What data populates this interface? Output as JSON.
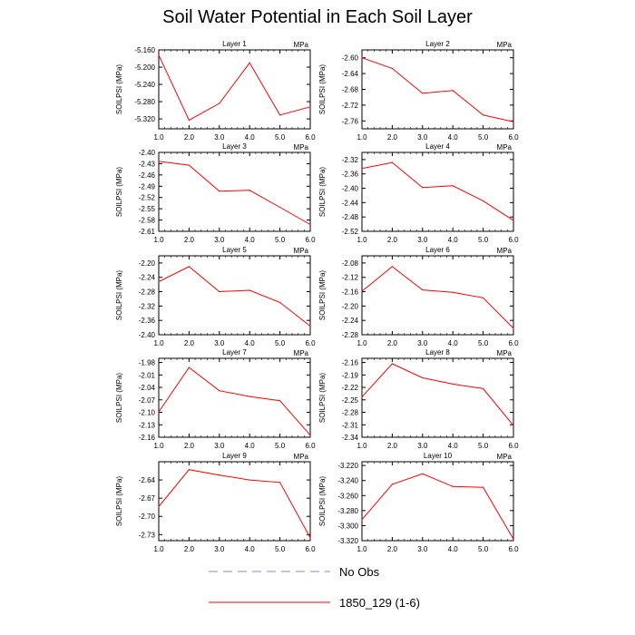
{
  "title": "Soil Water Potential in Each Soil Layer",
  "legend": {
    "items": [
      {
        "label": "No Obs",
        "color": "#8080ff",
        "style": "dashed"
      },
      {
        "label": "1850_129 (1-6)",
        "color": "#ff0000",
        "style": "solid"
      }
    ]
  },
  "chart_data": [
    {
      "type": "line",
      "title": "Layer 1",
      "units": "MPa",
      "ylabel": "SOILPSI  (MPa)",
      "x": [
        1,
        2,
        3,
        4,
        5,
        6
      ],
      "values": [
        -5.172,
        -5.323,
        -5.284,
        -5.19,
        -5.311,
        -5.292
      ],
      "xlim": [
        1,
        6
      ],
      "ylim": [
        -5.343,
        -5.16
      ],
      "yticks": [
        "-5.160",
        "-5.200",
        "-5.240",
        "-5.280",
        "-5.320"
      ],
      "xticks": [
        "1.0",
        "2.0",
        "3.0",
        "4.0",
        "5.0",
        "6.0"
      ],
      "color": "#ff0000"
    },
    {
      "type": "line",
      "title": "Layer 2",
      "units": "MPa",
      "ylabel": "SOILPSI  (MPa)",
      "x": [
        1,
        2,
        3,
        4,
        5,
        6
      ],
      "values": [
        -2.6,
        -2.627,
        -2.69,
        -2.683,
        -2.745,
        -2.762
      ],
      "xlim": [
        1,
        6
      ],
      "ylim": [
        -2.78,
        -2.58
      ],
      "yticks": [
        "-2.60",
        "-2.64",
        "-2.68",
        "-2.72",
        "-2.76"
      ],
      "xticks": [
        "1.0",
        "2.0",
        "3.0",
        "4.0",
        "5.0",
        "6.0"
      ],
      "color": "#ff0000"
    },
    {
      "type": "line",
      "title": "Layer 3",
      "units": "MPa",
      "ylabel": "SOILPSI  (MPa)",
      "x": [
        1,
        2,
        3,
        4,
        5,
        6
      ],
      "values": [
        -2.424,
        -2.434,
        -2.503,
        -2.501,
        -2.546,
        -2.592
      ],
      "xlim": [
        1,
        6
      ],
      "ylim": [
        -2.61,
        -2.4
      ],
      "yticks": [
        "-2.40",
        "-2.43",
        "-2.46",
        "-2.49",
        "-2.52",
        "-2.55",
        "-2.58",
        "-2.61"
      ],
      "xticks": [
        "1.0",
        "2.0",
        "3.0",
        "4.0",
        "5.0",
        "6.0"
      ],
      "color": "#ff0000"
    },
    {
      "type": "line",
      "title": "Layer 4",
      "units": "MPa",
      "ylabel": "SOILPSI  (MPa)",
      "x": [
        1,
        2,
        3,
        4,
        5,
        6
      ],
      "values": [
        -2.345,
        -2.328,
        -2.398,
        -2.393,
        -2.435,
        -2.49
      ],
      "xlim": [
        1,
        6
      ],
      "ylim": [
        -2.52,
        -2.3
      ],
      "yticks": [
        "-2.32",
        "-2.36",
        "-2.40",
        "-2.44",
        "-2.48",
        "-2.52"
      ],
      "xticks": [
        "1.0",
        "2.0",
        "3.0",
        "4.0",
        "5.0",
        "6.0"
      ],
      "color": "#ff0000"
    },
    {
      "type": "line",
      "title": "Layer 5",
      "units": "MPa",
      "ylabel": "SOILPSI  (MPa)",
      "x": [
        1,
        2,
        3,
        4,
        5,
        6
      ],
      "values": [
        -2.252,
        -2.21,
        -2.28,
        -2.276,
        -2.31,
        -2.376
      ],
      "xlim": [
        1,
        6
      ],
      "ylim": [
        -2.4,
        -2.18
      ],
      "yticks": [
        "-2.20",
        "-2.24",
        "-2.28",
        "-2.32",
        "-2.36",
        "-2.40"
      ],
      "xticks": [
        "1.0",
        "2.0",
        "3.0",
        "4.0",
        "5.0",
        "6.0"
      ],
      "color": "#ff0000"
    },
    {
      "type": "line",
      "title": "Layer 6",
      "units": "MPa",
      "ylabel": "SOILPSI  (MPa)",
      "x": [
        1,
        2,
        3,
        4,
        5,
        6
      ],
      "values": [
        -2.159,
        -2.09,
        -2.155,
        -2.162,
        -2.177,
        -2.262
      ],
      "xlim": [
        1,
        6
      ],
      "ylim": [
        -2.28,
        -2.06
      ],
      "yticks": [
        "-2.08",
        "-2.12",
        "-2.16",
        "-2.20",
        "-2.24",
        "-2.28"
      ],
      "xticks": [
        "1.0",
        "2.0",
        "3.0",
        "4.0",
        "5.0",
        "6.0"
      ],
      "color": "#ff0000"
    },
    {
      "type": "line",
      "title": "Layer 7",
      "units": "MPa",
      "ylabel": "SOILPSI  (MPa)",
      "x": [
        1,
        2,
        3,
        4,
        5,
        6
      ],
      "values": [
        -2.099,
        -1.992,
        -2.048,
        -2.062,
        -2.072,
        -2.155
      ],
      "xlim": [
        1,
        6
      ],
      "ylim": [
        -2.16,
        -1.97
      ],
      "yticks": [
        "-1.98",
        "-2.01",
        "-2.04",
        "-2.07",
        "-2.10",
        "-2.13",
        "-2.16"
      ],
      "xticks": [
        "1.0",
        "2.0",
        "3.0",
        "4.0",
        "5.0",
        "6.0"
      ],
      "color": "#ff0000"
    },
    {
      "type": "line",
      "title": "Layer 8",
      "units": "MPa",
      "ylabel": "SOILPSI  (MPa)",
      "x": [
        1,
        2,
        3,
        4,
        5,
        6
      ],
      "values": [
        -2.243,
        -2.163,
        -2.197,
        -2.212,
        -2.223,
        -2.312
      ],
      "xlim": [
        1,
        6
      ],
      "ylim": [
        -2.34,
        -2.15
      ],
      "yticks": [
        "-2.16",
        "-2.19",
        "-2.22",
        "-2.25",
        "-2.28",
        "-2.31",
        "-2.34"
      ],
      "xticks": [
        "1.0",
        "2.0",
        "3.0",
        "4.0",
        "5.0",
        "6.0"
      ],
      "color": "#ff0000"
    },
    {
      "type": "line",
      "title": "Layer 9",
      "units": "MPa",
      "ylabel": "SOILPSI  (MPa)",
      "x": [
        1,
        2,
        3,
        4,
        5,
        6
      ],
      "values": [
        -2.684,
        -2.623,
        -2.632,
        -2.64,
        -2.644,
        -2.735
      ],
      "xlim": [
        1,
        6
      ],
      "ylim": [
        -2.74,
        -2.61
      ],
      "yticks": [
        "-2.64",
        "-2.67",
        "-2.70",
        "-2.73"
      ],
      "xticks": [
        "1.0",
        "2.0",
        "3.0",
        "4.0",
        "5.0",
        "6.0"
      ],
      "color": "#ff0000"
    },
    {
      "type": "line",
      "title": "Layer 10",
      "units": "MPa",
      "ylabel": "SOILPSI  (MPa)",
      "x": [
        1,
        2,
        3,
        4,
        5,
        6
      ],
      "values": [
        -3.292,
        -3.245,
        -3.231,
        -3.248,
        -3.249,
        -3.318
      ],
      "xlim": [
        1,
        6
      ],
      "ylim": [
        -3.32,
        -3.215
      ],
      "yticks": [
        "-3.220",
        "-3.240",
        "-3.260",
        "-3.280",
        "-3.300",
        "-3.320"
      ],
      "xticks": [
        "1.0",
        "2.0",
        "3.0",
        "4.0",
        "5.0",
        "6.0"
      ],
      "color": "#ff0000"
    }
  ]
}
